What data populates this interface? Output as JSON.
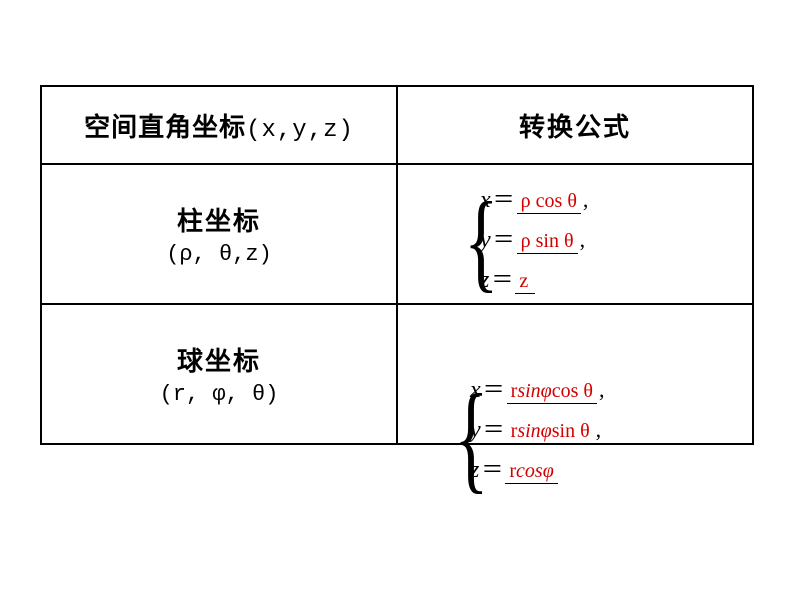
{
  "colors": {
    "text": "#000000",
    "answer": "#d30000",
    "border": "#000000",
    "background": "#ffffff"
  },
  "header": {
    "left_label": "空间直角坐标",
    "left_coords": "(x,y,z)",
    "right_label": "转换公式"
  },
  "rows": [
    {
      "title": "柱坐标",
      "params": "(ρ, θ,z)",
      "equations": [
        {
          "lhs": "x",
          "rhs_display": "ρ cos θ",
          "comma": ","
        },
        {
          "lhs": "y",
          "rhs_display": "ρ sin θ",
          "comma": ","
        },
        {
          "lhs": "z",
          "rhs_display": "z",
          "comma": ""
        }
      ]
    },
    {
      "title": "球坐标",
      "params": "(r, φ, θ)",
      "equations": [
        {
          "lhs": "x",
          "rhs_display": "rsinφcos θ",
          "comma": ","
        },
        {
          "lhs": "y",
          "rhs_display": "rsinφsin θ",
          "comma": ","
        },
        {
          "lhs": "z",
          "rhs_display": "rcosφ",
          "comma": ""
        }
      ]
    }
  ]
}
